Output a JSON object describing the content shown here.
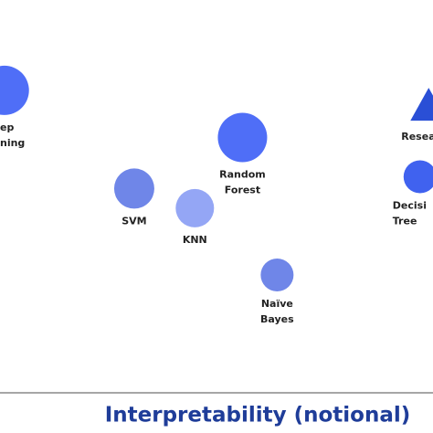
{
  "chart_data": {
    "type": "bubble",
    "x_label": "Interpretability (notional)",
    "labels": [
      [
        "ep",
        "ning"
      ],
      [
        "Random",
        "Forest"
      ],
      [
        "SVM"
      ],
      [
        "KNN"
      ],
      [
        "Naïve",
        "Bayes"
      ],
      [
        "Resea"
      ],
      [
        "Decisi",
        "Tree"
      ]
    ],
    "x": [
      1,
      56,
      31,
      45,
      64,
      99,
      97
    ],
    "values": [
      77,
      65,
      52,
      47,
      30,
      73,
      55
    ],
    "sizes": [
      27,
      27,
      22,
      21,
      18,
      20,
      18
    ],
    "markers": [
      "circle",
      "circle",
      "circle",
      "circle",
      "circle",
      "triangle",
      "circle"
    ],
    "colors": [
      "#4f6ef7",
      "#4f6ef7",
      "#6f86e8",
      "#94a6f5",
      "#6f86e8",
      "#2a4fd6",
      "#4062ef"
    ],
    "xlim": [
      0,
      100
    ],
    "ylim": [
      0,
      100
    ]
  }
}
